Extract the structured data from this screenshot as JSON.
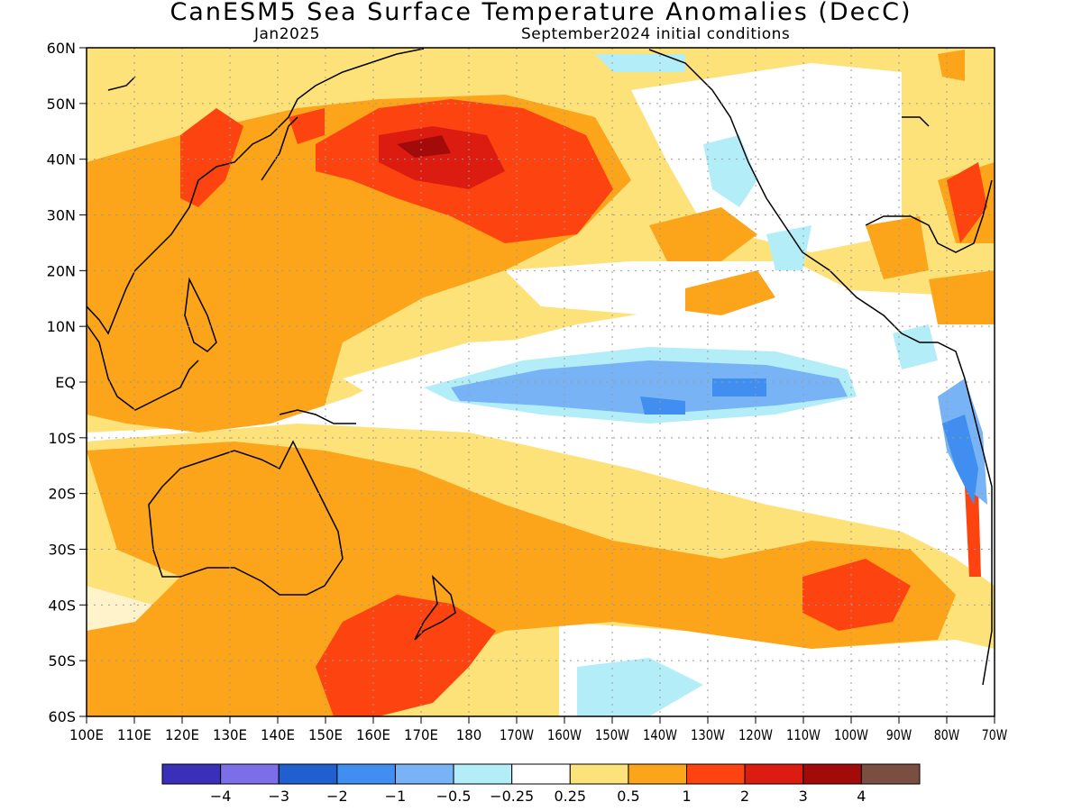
{
  "title": "CanESM5 Sea Surface Temperature Anomalies (DecC)",
  "subtitle_left": "Jan2025",
  "subtitle_right": "September2024 initial conditions",
  "map": {
    "lon_range": [
      100,
      290
    ],
    "lat_range": [
      -60,
      60
    ],
    "grid": true,
    "lat_labels": [
      "60N",
      "50N",
      "40N",
      "30N",
      "20N",
      "10N",
      "EQ",
      "10S",
      "20S",
      "30S",
      "40S",
      "50S",
      "60S"
    ],
    "lon_labels": [
      "100E",
      "110E",
      "120E",
      "130E",
      "140E",
      "150E",
      "160E",
      "170E",
      "180",
      "170W",
      "160W",
      "150W",
      "140W",
      "130W",
      "120W",
      "110W",
      "100W",
      "90W",
      "80W",
      "70W"
    ]
  },
  "colorbar": {
    "colors": [
      "#3a2fb8",
      "#7b6ee8",
      "#1f5fd0",
      "#3f8ef0",
      "#78b4f5",
      "#b3eef8",
      "#ffffff",
      "#fde27a",
      "#fca41a",
      "#fd4410",
      "#dc1c10",
      "#a30a0a",
      "#7a4f42"
    ],
    "labels": [
      "−4",
      "−3",
      "−2",
      "−1",
      "−0.5",
      "−0.25",
      "0.25",
      "0.5",
      "1",
      "2",
      "3",
      "4"
    ]
  }
}
